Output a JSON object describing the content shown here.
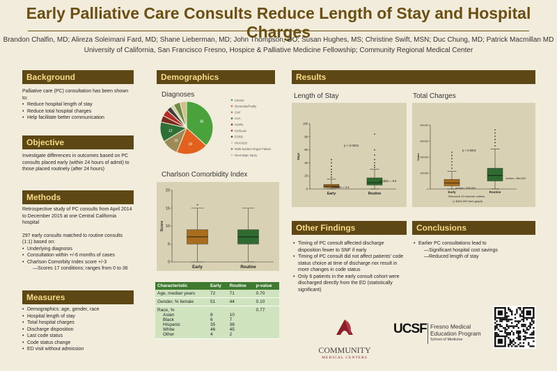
{
  "title": "Early Palliative Care Consults Reduce Length of Stay and Hospital Charges",
  "authors": "Brandon Chalfin, MD; Alireza Soleimani Fard, MD; Shane Lieberman, MD; John Thompson, DO; Susan Hughes, MS; Christine Swift, MSN; Duc Chung, MD; Patrick Macmillan MD",
  "affiliation": "University of California, San Francisco Fresno, Hospice & Palliative Medicine Fellowship; Community Regional Medical Center",
  "background": {
    "heading": "Background",
    "intro": "Palliative care (PC) consultation has been shown to:",
    "items": [
      "Reduce hospital length of stay",
      "Reduce total hospital charges",
      "Help facilitate better communication"
    ]
  },
  "objective": {
    "heading": "Objective",
    "text": "Investigate differences in outcomes based on PC consults placed early (within 24 hours of admit) to those placed routinely (after 24 hours)"
  },
  "methods": {
    "heading": "Methods",
    "p1": "Retrospective study of PC consults from April 2014 to December 2015 at one Central California hospital",
    "p2": "297 early consults matched to routine consults (1:1) based on:",
    "items": [
      "Underlying diagnosis",
      "Consultation within +/-6 months of cases",
      "Charlson Comorbity Index score +/-3"
    ],
    "sub": "—Scores 17 conditions; ranges from 0 to 36"
  },
  "measures": {
    "heading": "Measures",
    "items": [
      "Demographics: age, gender, race",
      "Hospital length of stay",
      "Total hospital charges",
      "Discharge disposition",
      "Last code status",
      "Code status change",
      "ED visit without admission"
    ]
  },
  "demographics": {
    "heading": "Demographics",
    "diagnoses_title": "Diagnoses",
    "legend": [
      "Cancer",
      "Dementia/Frailty",
      "CHF",
      "CVA",
      "COPD",
      "Cirrhosis",
      "ESRD",
      "HIV/AIDS",
      "Multi-System Organ Failure",
      "Neurologic Injury"
    ],
    "charlson_title": "Charlson Comorbidity Index",
    "table": {
      "headers": [
        "Characteristic",
        "Early",
        "Routine",
        "p-value"
      ],
      "rows": [
        {
          "label": "Age, median years",
          "early": "72",
          "routine": "71",
          "p": "0.70"
        },
        {
          "label": "Gender, % female",
          "early": "51",
          "routine": "44",
          "p": "0.10"
        },
        {
          "label": "Race, %",
          "early": "",
          "routine": "",
          "p": "0.77"
        }
      ],
      "race": [
        {
          "label": "Asian",
          "early": "8",
          "routine": "10"
        },
        {
          "label": "Black",
          "early": "6",
          "routine": "7"
        },
        {
          "label": "Hispanic",
          "early": "35",
          "routine": "36"
        },
        {
          "label": "White",
          "early": "46",
          "routine": "45"
        },
        {
          "label": "Other",
          "early": "4",
          "routine": "2"
        }
      ]
    }
  },
  "results": {
    "heading": "Results",
    "los_title": "Length of Stay",
    "charges_title": "Total Charges",
    "los_pval": "p < 0.0001",
    "los_med_early": "median = 4.2",
    "los_med_routine": "median = 9.6",
    "ch_pval": "p < 0.0001",
    "ch_med_early": "median = $38,000",
    "ch_med_routine": "median = $84,000",
    "ch_note1": "Removed 10 extreme outliers",
    "ch_note2": "(> $400,000 from graph)"
  },
  "other_findings": {
    "heading": "Other Findings",
    "items": [
      "Timing of PC consult affected discharge disposition fewer to SNF if early",
      "Timing of PC consult did not affect patients' code status choice at time of discharge nor result in more changes in code status",
      "Only 6 patients in the early consult cohort were discharged directly from the ED (statistically significant)"
    ]
  },
  "conclusions": {
    "heading": "Conclusions",
    "intro": "Earlier PC consultations lead to",
    "sub": [
      "—Significant hospital cost savings",
      "—Reduced length of stay"
    ]
  },
  "logos": {
    "community": "COMMUNITY",
    "community_sub": "MEDICAL CENTERS",
    "ucsf": "UCSF",
    "fresno1": "Fresno Medical",
    "fresno2": "Education Program",
    "fresno3": "School of Medicine"
  },
  "chart_data": [
    {
      "type": "pie",
      "title": "Diagnoses",
      "categories": [
        "Cancer",
        "Dementia/Frailty",
        "CHF",
        "CVA",
        "COPD",
        "Cirrhosis",
        "ESRD",
        "HIV/AIDS",
        "Multi-System Organ Failure",
        "Neurologic Injury"
      ],
      "values": [
        36,
        19,
        10,
        12,
        4,
        4,
        3,
        2,
        4,
        4
      ],
      "slice_labels": [
        "36",
        "19",
        "10",
        "12",
        "",
        "",
        "",
        "",
        "",
        ""
      ],
      "colors": [
        "#4aa23c",
        "#e2621d",
        "#9c8a57",
        "#2e6e37",
        "#7a2c1f",
        "#b52c26",
        "#3f3f3f",
        "#c7d29c",
        "#6f8a43",
        "#d0c08c"
      ]
    },
    {
      "type": "box",
      "title": "Charlson Comorbidity Index",
      "ylabel": "Score",
      "ylim": [
        0,
        20
      ],
      "yticks": [
        0,
        5,
        10,
        15,
        20
      ],
      "categories": [
        "Early",
        "Routine"
      ],
      "boxes": [
        {
          "min": 0,
          "q1": 5,
          "median": 7,
          "q3": 9,
          "max": 15,
          "outliers": [
            16
          ],
          "color": "#a86e1e"
        },
        {
          "min": 0,
          "q1": 5,
          "median": 7,
          "q3": 9,
          "max": 15,
          "outliers": [],
          "color": "#2f6b30"
        }
      ]
    },
    {
      "type": "box",
      "title": "Length of Stay",
      "ylabel": "Days",
      "ylim": [
        0,
        100
      ],
      "yticks": [
        0,
        20,
        40,
        60,
        80,
        100
      ],
      "categories": [
        "Early",
        "Routine"
      ],
      "boxes": [
        {
          "min": 0,
          "q1": 2,
          "median": 4.2,
          "q3": 7,
          "max": 15,
          "outliers": [
            18,
            22,
            26,
            30,
            35,
            40,
            45
          ],
          "color": "#a86e1e"
        },
        {
          "min": 0,
          "q1": 6,
          "median": 9.6,
          "q3": 17,
          "max": 30,
          "outliers": [
            33,
            36,
            40,
            45,
            52,
            60,
            84
          ],
          "color": "#2f6b30"
        }
      ]
    },
    {
      "type": "box",
      "title": "Total Charges",
      "ylabel": "Dollars",
      "ylim": [
        0,
        400000
      ],
      "yticks": [
        0,
        100000,
        200000,
        300000,
        400000
      ],
      "ytick_labels": [
        "0",
        "100,000",
        "200,000",
        "300,000",
        "400,000"
      ],
      "categories": [
        "Early",
        "Routine"
      ],
      "boxes": [
        {
          "min": 0,
          "q1": 20000,
          "median": 38000,
          "q3": 60000,
          "max": 110000,
          "outliers": [
            130000,
            150000,
            170000,
            190000,
            210000,
            230000
          ],
          "color": "#a86e1e"
        },
        {
          "min": 0,
          "q1": 50000,
          "median": 84000,
          "q3": 130000,
          "max": 250000,
          "outliers": [
            270000,
            290000,
            310000,
            330000,
            350000,
            370000
          ],
          "color": "#2f6b30"
        }
      ]
    }
  ]
}
